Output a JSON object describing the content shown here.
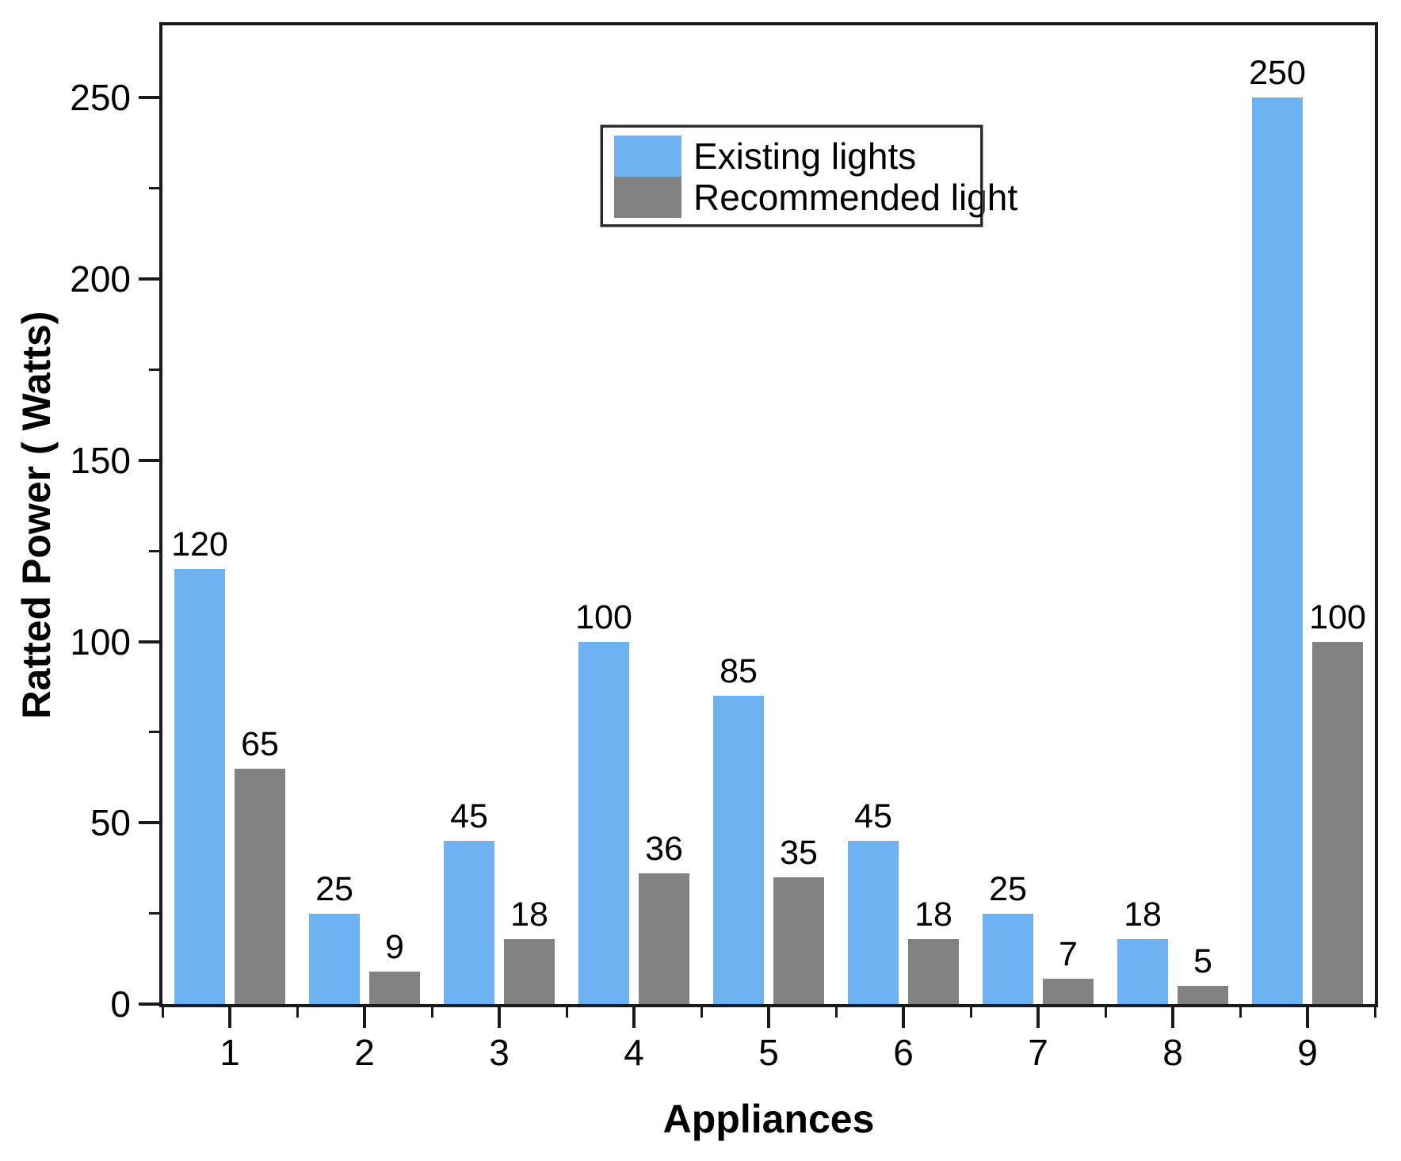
{
  "chart_data": {
    "type": "bar",
    "title": "",
    "xlabel": "Appliances",
    "ylabel": "Ratted Power ( Watts)",
    "categories": [
      "1",
      "2",
      "3",
      "4",
      "5",
      "6",
      "7",
      "8",
      "9"
    ],
    "series": [
      {
        "name": "Existing lights",
        "color": "#6EB2F2",
        "values": [
          120,
          25,
          45,
          100,
          85,
          45,
          25,
          18,
          250
        ]
      },
      {
        "name": "Recommended light",
        "color": "#828282",
        "values": [
          65,
          9,
          18,
          36,
          35,
          18,
          7,
          5,
          100
        ]
      }
    ],
    "ylim": [
      0,
      270
    ],
    "yticks": [
      0,
      50,
      100,
      150,
      200,
      250
    ],
    "yminorticks": [
      25,
      75,
      125,
      175,
      225
    ],
    "bar_value_labels": true,
    "grid": false,
    "legend": {
      "position": "top-center",
      "border": true
    }
  },
  "colors": {
    "axis": "#1a1a1a",
    "text": "#000000",
    "background": "#ffffff"
  }
}
